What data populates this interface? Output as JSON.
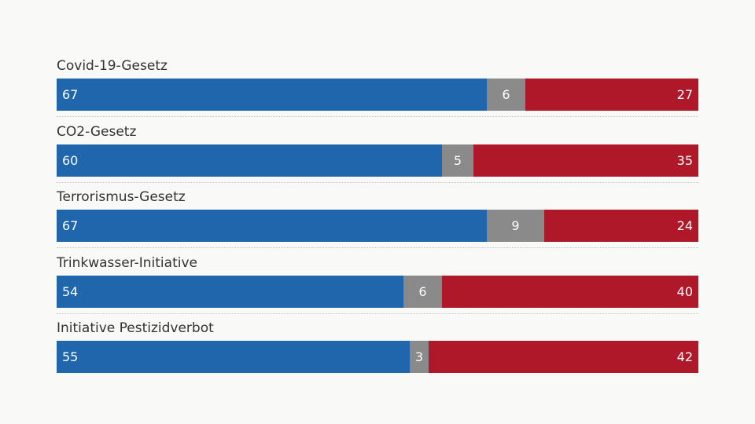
{
  "chart_data": {
    "type": "bar",
    "orientation": "horizontal",
    "stacked": true,
    "normalized_to": 100,
    "categories": [
      "Covid-19-Gesetz",
      "CO2-Gesetz",
      "Terrorismus-Gesetz",
      "Trinkwasser-Initiative",
      "Initiative Pestizidverbot"
    ],
    "series": [
      {
        "values": [
          67,
          60,
          67,
          54,
          55
        ],
        "color": "#1f66ad"
      },
      {
        "values": [
          6,
          5,
          9,
          6,
          3
        ],
        "color": "#8a8a8a"
      },
      {
        "values": [
          27,
          35,
          24,
          40,
          42
        ],
        "color": "#ae1829"
      }
    ],
    "xlim": [
      0,
      100
    ],
    "grid": false,
    "legend": "none"
  }
}
